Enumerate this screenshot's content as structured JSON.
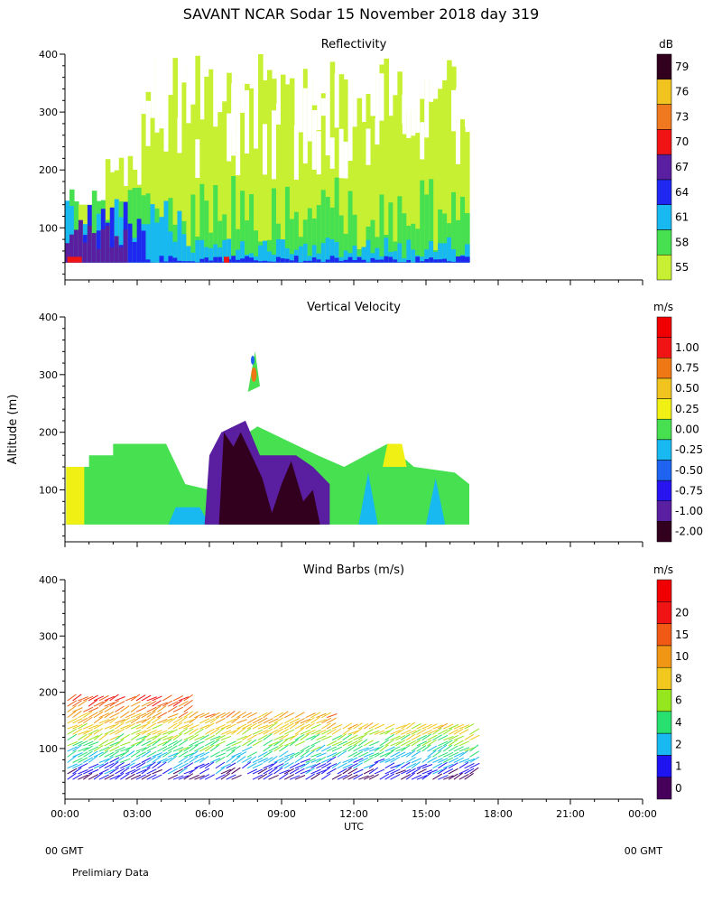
{
  "header": {
    "title": "SAVANT  NCAR Sodar  15 November 2018  day 319",
    "footer_left_gmt": "00 GMT",
    "footer_right_gmt": "00 GMT",
    "footer_note": "Prelimiary Data"
  },
  "chart_data": [
    {
      "type": "heatmap",
      "title": "Reflectivity",
      "ylabel": "",
      "xlabel": "",
      "ylim": [
        10,
        400
      ],
      "y_ticks": [
        100,
        200,
        300,
        400
      ],
      "x_range_hours": [
        0,
        24
      ],
      "data_extent_hours": [
        0.0,
        16.8
      ],
      "colorbar": {
        "unit": "dB",
        "levels": [
          "55",
          "58",
          "61",
          "64",
          "67",
          "70",
          "73",
          "76",
          "79"
        ],
        "colors": [
          "#c8f032",
          "#46e050",
          "#18b8f0",
          "#1e28f0",
          "#5a1ea0",
          "#f01414",
          "#f0781e",
          "#f0c31e",
          "#32001e"
        ]
      }
    },
    {
      "type": "heatmap",
      "title": "Vertical Velocity",
      "ylabel": "Altitude (m)",
      "xlabel": "",
      "ylim": [
        10,
        400
      ],
      "y_ticks": [
        100,
        200,
        300,
        400
      ],
      "x_range_hours": [
        0,
        24
      ],
      "data_extent_hours": [
        0.0,
        16.8
      ],
      "colorbar": {
        "unit": "m/s",
        "levels": [
          "-2.00",
          "-1.00",
          "-0.75",
          "-0.50",
          "-0.25",
          "0.00",
          "0.25",
          "0.50",
          "0.75",
          "1.00"
        ],
        "colors": [
          "#32001e",
          "#5a1ea0",
          "#2814f0",
          "#1e64f0",
          "#18b8f0",
          "#46e050",
          "#f0f014",
          "#f0c31e",
          "#f07814",
          "#f01414",
          "#f00000"
        ]
      }
    },
    {
      "type": "scatter",
      "title": "Wind Barbs (m/s)",
      "ylabel": "",
      "xlabel": "UTC",
      "ylim": [
        10,
        400
      ],
      "y_ticks": [
        100,
        200,
        300,
        400
      ],
      "x_range_hours": [
        0,
        24
      ],
      "data_extent_hours": [
        0.0,
        17.0
      ],
      "x_tick_labels": [
        "00:00",
        "03:00",
        "06:00",
        "09:00",
        "12:00",
        "15:00",
        "18:00",
        "21:00",
        "00:00"
      ],
      "colorbar": {
        "unit": "m/s",
        "levels": [
          "0",
          "1",
          "2",
          "4",
          "6",
          "8",
          "10",
          "15",
          "20"
        ],
        "colors": [
          "#46005a",
          "#1e14f0",
          "#18b8f0",
          "#28e070",
          "#96e61e",
          "#f0c81e",
          "#f09614",
          "#f05a14",
          "#f01414",
          "#f00000"
        ]
      }
    }
  ]
}
